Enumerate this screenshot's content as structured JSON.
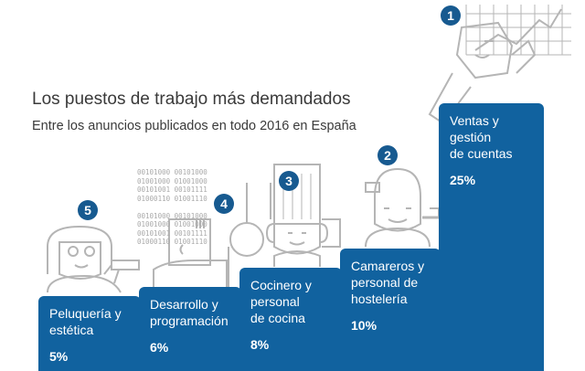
{
  "title": "Los puestos de trabajo más demandados",
  "subtitle": "Entre los anuncios publicados en todo 2016 en España",
  "colors": {
    "bar": "#11629f",
    "badge": "#175a90",
    "illustration": "#b5b5b5",
    "text": "#3a3a3a"
  },
  "decor_binary": [
    "00101000 00101000",
    "01001000 01001000",
    "00101001 00101111",
    "01000110 01001110",
    "",
    "00101000 00101000",
    "01001000 01001000",
    "00101001 00101111",
    "01000110 01001110"
  ],
  "chart_data": {
    "type": "bar",
    "title": "Los puestos de trabajo más demandados",
    "subtitle": "Entre los anuncios publicados en todo 2016 en España",
    "unit": "%",
    "categories": [
      "Peluquería y estética",
      "Desarrollo y programación",
      "Cocinero y personal de cocina",
      "Camareros y personal de hostelería",
      "Ventas y gestión de cuentas"
    ],
    "values": [
      5,
      6,
      8,
      10,
      25
    ],
    "ranks": [
      5,
      4,
      3,
      2,
      1
    ],
    "bars": [
      {
        "rank": "5",
        "label": "Peluquería y\nestética",
        "value_label": "5%",
        "value": 5
      },
      {
        "rank": "4",
        "label": "Desarrollo y\nprogramación",
        "value_label": "6%",
        "value": 6
      },
      {
        "rank": "3",
        "label": "Cocinero y\npersonal\nde cocina",
        "value_label": "8%",
        "value": 8
      },
      {
        "rank": "2",
        "label": "Camareros y\npersonal de\nhostelería",
        "value_label": "10%",
        "value": 10
      },
      {
        "rank": "1",
        "label": "Ventas y\ngestión\nde cuentas",
        "value_label": "25%",
        "value": 25
      }
    ]
  }
}
